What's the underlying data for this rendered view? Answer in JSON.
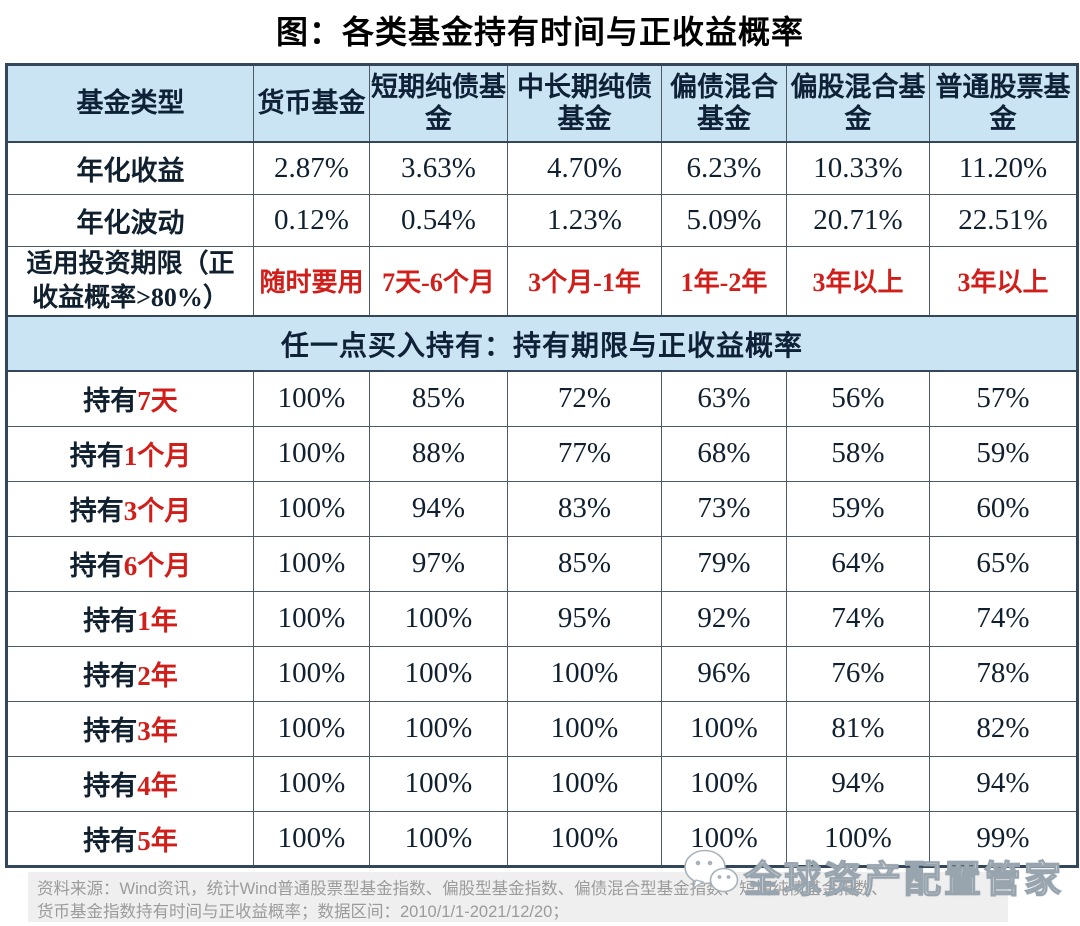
{
  "title": "图：各类基金持有时间与正收益概率",
  "chart_data": {
    "type": "table",
    "title": "图：各类基金持有时间与正收益概率",
    "columns": [
      "基金类型",
      "货币基金",
      "短期纯债基金",
      "中长期纯债基金",
      "偏债混合基金",
      "偏股混合基金",
      "普通股票基金"
    ],
    "rows": [
      {
        "kind": "metric",
        "label": "年化收益",
        "values": [
          "2.87%",
          "3.63%",
          "4.70%",
          "6.23%",
          "10.33%",
          "11.20%"
        ]
      },
      {
        "kind": "metric",
        "label": "年化波动",
        "values": [
          "0.12%",
          "0.54%",
          "1.23%",
          "5.09%",
          "20.71%",
          "22.51%"
        ]
      },
      {
        "kind": "period",
        "label": "适用投资期限（正收益概率>80%）",
        "values": [
          "随时要用",
          "7天-6个月",
          "3个月-1年",
          "1年-2年",
          "3年以上",
          "3年以上"
        ]
      },
      {
        "kind": "section",
        "label": "任一点买入持有：持有期限与正收益概率"
      },
      {
        "kind": "holding",
        "label_black": "持有",
        "label_red": "7天",
        "values": [
          "100%",
          "85%",
          "72%",
          "63%",
          "56%",
          "57%"
        ]
      },
      {
        "kind": "holding",
        "label_black": "持有",
        "label_red": "1个月",
        "values": [
          "100%",
          "88%",
          "77%",
          "68%",
          "58%",
          "59%"
        ]
      },
      {
        "kind": "holding",
        "label_black": "持有",
        "label_red": "3个月",
        "values": [
          "100%",
          "94%",
          "83%",
          "73%",
          "59%",
          "60%"
        ]
      },
      {
        "kind": "holding",
        "label_black": "持有",
        "label_red": "6个月",
        "values": [
          "100%",
          "97%",
          "85%",
          "79%",
          "64%",
          "65%"
        ]
      },
      {
        "kind": "holding",
        "label_black": "持有",
        "label_red": "1年",
        "values": [
          "100%",
          "100%",
          "95%",
          "92%",
          "74%",
          "74%"
        ]
      },
      {
        "kind": "holding",
        "label_black": "持有",
        "label_red": "2年",
        "values": [
          "100%",
          "100%",
          "100%",
          "96%",
          "76%",
          "78%"
        ]
      },
      {
        "kind": "holding",
        "label_black": "持有",
        "label_red": "3年",
        "values": [
          "100%",
          "100%",
          "100%",
          "100%",
          "81%",
          "82%"
        ]
      },
      {
        "kind": "holding",
        "label_black": "持有",
        "label_red": "4年",
        "values": [
          "100%",
          "100%",
          "100%",
          "100%",
          "94%",
          "94%"
        ]
      },
      {
        "kind": "holding",
        "label_black": "持有",
        "label_red": "5年",
        "values": [
          "100%",
          "100%",
          "100%",
          "100%",
          "100%",
          "99%"
        ]
      }
    ],
    "layout": {
      "grid": true,
      "header_background": "#cbe4f3",
      "section_row_index": 3
    }
  },
  "footer": {
    "line1": "资料来源：Wind资讯，统计Wind普通股票型基金指数、偏股型基金指数、偏债混合型基金指数、短期纯债基金指数、",
    "line2": "货币基金指数持有时间与正收益概率；数据区间：2010/1/1-2021/12/20；"
  },
  "watermark": {
    "text": "全球资产配置管家",
    "icon": "wechat-icon"
  },
  "colors": {
    "header_blue": "#cbe4f3",
    "accent_red": "#d01f1a",
    "table_border": "#33465a",
    "footer_background": "#efefef",
    "footer_text": "#9b9b9b",
    "header_text": "#0e2137"
  }
}
